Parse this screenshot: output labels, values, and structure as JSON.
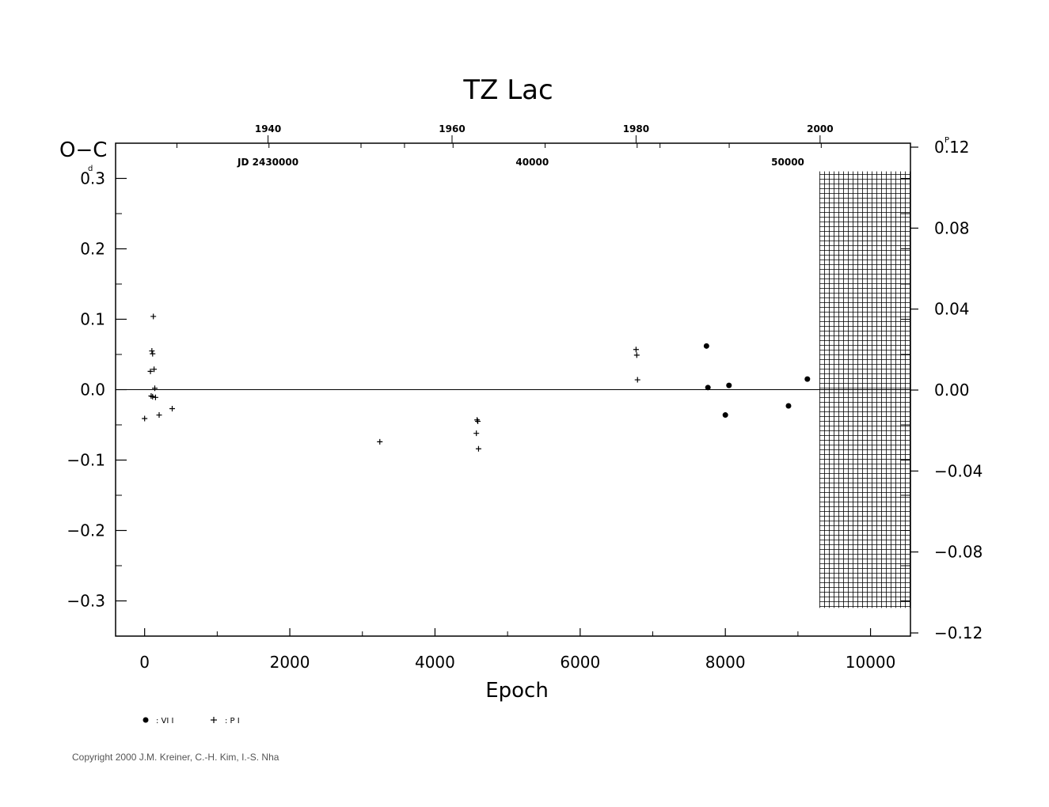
{
  "chart_data": {
    "type": "scatter",
    "title": "TZ Lac",
    "xlabel": "Epoch",
    "ylabel": "O−C",
    "ylabel_unit": "d",
    "right_unit": "P",
    "xlim": [
      -400,
      10550
    ],
    "ylim": [
      -0.35,
      0.35
    ],
    "right_ylim": [
      -0.12,
      0.12
    ],
    "x_ticks": [
      0,
      2000,
      4000,
      6000,
      8000,
      10000
    ],
    "x_tick_labels": [
      "0",
      "2000",
      "4000",
      "6000",
      "8000",
      "10000"
    ],
    "y_ticks": [
      0.3,
      0.2,
      0.1,
      0.0,
      -0.1,
      -0.2,
      -0.3
    ],
    "y_tick_labels": [
      "0.3",
      "0.2",
      "0.1",
      "0.0",
      "−0.1",
      "−0.2",
      "−0.3"
    ],
    "right_ticks": [
      0.12,
      0.08,
      0.04,
      0.0,
      -0.04,
      -0.08,
      -0.12
    ],
    "right_tick_labels": [
      "0.12",
      "0.08",
      "0.04",
      "0.00",
      "−0.04",
      "−0.08",
      "−0.12"
    ],
    "top_year_ticks": [
      {
        "label": "1940",
        "epoch": 1700
      },
      {
        "label": "1960",
        "epoch": 4235
      },
      {
        "label": "1980",
        "epoch": 6770
      },
      {
        "label": "2000",
        "epoch": 9305
      }
    ],
    "jd_labels": [
      {
        "label": "JD 2430000",
        "epoch": 1700
      },
      {
        "label": "40000",
        "epoch": 5340
      },
      {
        "label": "50000",
        "epoch": 8860
      }
    ],
    "hatch_range": [
      9300,
      10550
    ],
    "hatch_ylim": [
      -0.31,
      0.31
    ],
    "series": [
      {
        "name": ": VI I",
        "marker": "dot",
        "x": [
          7740,
          7760,
          8050,
          8000,
          8870,
          9130
        ],
        "y": [
          0.062,
          0.003,
          0.006,
          -0.036,
          -0.023,
          0.015
        ]
      },
      {
        "name": ": P I",
        "marker": "plus",
        "x": [
          0,
          80,
          100,
          110,
          120,
          130,
          140,
          150,
          90,
          110,
          200,
          380,
          3240,
          4580,
          4590,
          4570,
          4600,
          6770,
          6780,
          6790
        ],
        "y": [
          -0.041,
          0.026,
          0.055,
          0.051,
          0.104,
          0.029,
          0.002,
          -0.011,
          -0.009,
          -0.01,
          -0.036,
          -0.027,
          -0.074,
          -0.043,
          -0.045,
          -0.062,
          -0.084,
          0.057,
          0.049,
          0.014
        ]
      }
    ]
  },
  "legend": [
    {
      "marker": "dot",
      "label": ": VI I"
    },
    {
      "marker": "plus",
      "label": ": P I"
    }
  ],
  "copyright": "Copyright 2000 J.M. Kreiner, C.-H. Kim, I.-S. Nha"
}
